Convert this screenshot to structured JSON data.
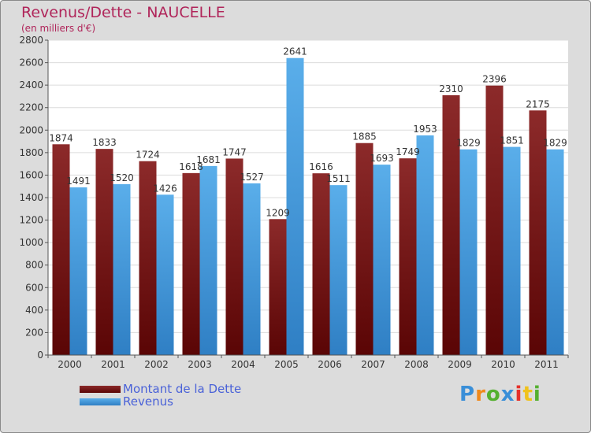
{
  "title": "Revenus/Dette - NAUCELLE",
  "subtitle": "(en milliers d'€)",
  "logo": {
    "text": "Proxiti",
    "letter_colors": [
      "#3a8fd8",
      "#f08a1c",
      "#55b030",
      "#3a8fd8",
      "#e6302a",
      "#f0c21c",
      "#55b030"
    ]
  },
  "colors": {
    "background": "#dcdcdc",
    "plot_background": "#ffffff",
    "grid": "#dcdcdc",
    "title": "#b0255a",
    "legend_text": "#4a62d8"
  },
  "chart_data": {
    "type": "bar",
    "categories": [
      "2000",
      "2001",
      "2002",
      "2003",
      "2004",
      "2005",
      "2006",
      "2007",
      "2008",
      "2009",
      "2010",
      "2011"
    ],
    "series": [
      {
        "name": "Montant de la Dette",
        "color": "#7a1f1f",
        "values": [
          1874,
          1833,
          1724,
          1618,
          1747,
          1209,
          1616,
          1885,
          1749,
          2310,
          2396,
          2175
        ]
      },
      {
        "name": "Revenus",
        "color": "#4aa3e6",
        "values": [
          1491,
          1520,
          1426,
          1681,
          1527,
          2641,
          1511,
          1693,
          1953,
          1829,
          1851,
          1829
        ]
      }
    ],
    "yticks": [
      0,
      200,
      400,
      600,
      800,
      1000,
      1200,
      1400,
      1600,
      1800,
      2000,
      2200,
      2400,
      2600,
      2800
    ],
    "ylim": [
      0,
      2800
    ],
    "grid": true,
    "legend_position": "bottom-left"
  }
}
